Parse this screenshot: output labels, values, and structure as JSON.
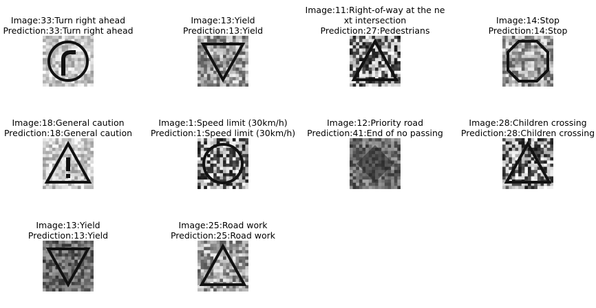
{
  "panels": [
    {
      "title": "Image:33:Turn right ahead\nPrediction:33:Turn right ahead",
      "icon": "turn-right-ahead-sign",
      "seed": 7,
      "tone": "light"
    },
    {
      "title": "Image:13:Yield\nPrediction:13:Yield",
      "icon": "yield-sign",
      "seed": 13,
      "tone": "mid"
    },
    {
      "title": "Image:11:Right-of-way at the ne\nxt intersection\nPrediction:27:Pedestrians",
      "icon": "right-of-way-sign",
      "seed": 11,
      "tone": "noisy"
    },
    {
      "title": "Image:14:Stop\nPrediction:14:Stop",
      "icon": "stop-sign",
      "seed": 14,
      "tone": "mid"
    },
    {
      "title": "Image:18:General caution\nPrediction:18:General caution",
      "icon": "general-caution-sign",
      "seed": 18,
      "tone": "light"
    },
    {
      "title": "Image:1:Speed limit (30km/h)\nPrediction:1:Speed limit (30km/h)",
      "icon": "speed-limit-sign",
      "seed": 1,
      "tone": "noisy"
    },
    {
      "title": "Image:12:Priority road\nPrediction:41:End of no passing",
      "icon": "priority-road-sign",
      "seed": 12,
      "tone": "blurry"
    },
    {
      "title": "Image:28:Children crossing\nPrediction:28:Children crossing",
      "icon": "children-crossing-sign",
      "seed": 28,
      "tone": "noisy"
    },
    {
      "title": "Image:13:Yield\nPrediction:13:Yield",
      "icon": "yield-sign",
      "seed": 31,
      "tone": "blurry"
    },
    {
      "title": "Image:25:Road work\nPrediction:25:Road work",
      "icon": "road-work-sign",
      "seed": 25,
      "tone": "mid"
    }
  ]
}
